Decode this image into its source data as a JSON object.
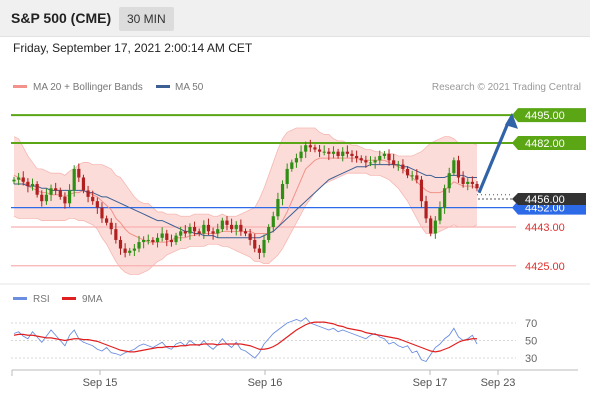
{
  "header": {
    "title": "S&P 500 (CME)",
    "interval": "30 MIN"
  },
  "datetime": "Friday, September 17, 2021 2:00:14 AM CET",
  "legend": {
    "ma20": "MA 20 + Bollinger Bands",
    "ma50": "MA 50",
    "ma20_color": "#f3928a",
    "ma50_color": "#3c5f94",
    "credit": "Research © 2021 Trading Central"
  },
  "rsi_legend": {
    "rsi": "RSI",
    "ma": "9MA",
    "rsi_color": "#6b8ee0",
    "ma_color": "#e02020"
  },
  "colors": {
    "resistance": "#5aa614",
    "support": "#f8b1b1",
    "pivot": "#2d6ae8",
    "bullish": "#2f8e14",
    "bearish": "#b02020",
    "arrow": "#3163a8",
    "bollinger_fill": "#fbd3d0",
    "current_price_bg": "#333333"
  },
  "chart_data": [
    {
      "type": "candlestick",
      "title": "S&P 500 (CME) 30 MIN",
      "x_tick_labels": [
        "Sep 15",
        "Sep 16",
        "Sep 17",
        "Sep 23"
      ],
      "ylim": [
        4417,
        4502
      ],
      "current_price": 4456.0,
      "levels": [
        {
          "label": "4495.00",
          "value": 4495.0,
          "kind": "resistance"
        },
        {
          "label": "4482.00",
          "value": 4482.0,
          "kind": "resistance"
        },
        {
          "label": "4452.00",
          "value": 4452.0,
          "kind": "pivot"
        },
        {
          "label": "4443.00",
          "value": 4443.0,
          "kind": "support"
        },
        {
          "label": "4425.00",
          "value": 4425.0,
          "kind": "support"
        }
      ],
      "current_price_label": "4456.00",
      "projection": {
        "from": 4458,
        "to": 4496
      },
      "close": [
        4465,
        4466,
        4464,
        4462,
        4463,
        4458,
        4455,
        4458,
        4461,
        4460,
        4457,
        4454,
        4460,
        4470,
        4466,
        4460,
        4457,
        4455,
        4452,
        4447,
        4445,
        4442,
        4437,
        4433,
        4431,
        4432,
        4433,
        4436,
        4437,
        4437,
        4436,
        4438,
        4440,
        4437,
        4436,
        4439,
        4441,
        4440,
        4443,
        4441,
        4440,
        4444,
        4441,
        4440,
        4442,
        4446,
        4444,
        4442,
        4444,
        4441,
        4440,
        4437,
        4433,
        4431,
        4437,
        4443,
        4448,
        4456,
        4463,
        4470,
        4473,
        4475,
        4478,
        4481,
        4480,
        4479,
        4478,
        4478,
        4477,
        4478,
        4476,
        4478,
        4477,
        4476,
        4475,
        4474,
        4473,
        4473,
        4474,
        4476,
        4477,
        4474,
        4472,
        4472,
        4470,
        4467,
        4467,
        4465,
        4455,
        4447,
        4440,
        4446,
        4452,
        4461,
        4468,
        4474,
        4466,
        4463,
        4464,
        4463,
        4461
      ],
      "bollinger_upper": [
        4485,
        4484,
        4480,
        4476,
        4473,
        4470,
        4470,
        4469,
        4468,
        4468,
        4468,
        4467,
        4469,
        4470,
        4472,
        4473,
        4473,
        4472,
        4472,
        4472,
        4471,
        4470,
        4467,
        4466,
        4463,
        4460,
        4457,
        4455,
        4454,
        4454,
        4452,
        4450,
        4450,
        4449,
        4449,
        4449,
        4448,
        4448,
        4448,
        4449,
        4449,
        4449,
        4449,
        4448,
        4448,
        4449,
        4448,
        4448,
        4448,
        4449,
        4450,
        4451,
        4452,
        4456,
        4461,
        4467,
        4473,
        4479,
        4484,
        4487,
        4488,
        4489,
        4489,
        4489,
        4489,
        4489,
        4487,
        4486,
        4486,
        4484,
        4483,
        4483,
        4482,
        4481,
        4481,
        4480,
        4479,
        4479,
        4478,
        4478,
        4477,
        4477,
        4477,
        4476,
        4476,
        4476,
        4476,
        4477,
        4478,
        4480,
        4482,
        4483,
        4484,
        4485,
        4485,
        4484,
        4482,
        4482,
        4482,
        4482,
        4481
      ],
      "bollinger_lower": [
        4448,
        4447,
        4447,
        4447,
        4447,
        4447,
        4446,
        4446,
        4446,
        4446,
        4446,
        4446,
        4447,
        4447,
        4446,
        4446,
        4445,
        4444,
        4442,
        4438,
        4435,
        4431,
        4427,
        4424,
        4422,
        4421,
        4421,
        4421,
        4422,
        4423,
        4425,
        4427,
        4428,
        4430,
        4431,
        4432,
        4433,
        4433,
        4434,
        4434,
        4434,
        4434,
        4435,
        4435,
        4435,
        4434,
        4434,
        4433,
        4432,
        4431,
        4430,
        4429,
        4427,
        4427,
        4426,
        4426,
        4428,
        4430,
        4433,
        4437,
        4441,
        4445,
        4449,
        4453,
        4456,
        4459,
        4461,
        4463,
        4464,
        4465,
        4466,
        4467,
        4468,
        4468,
        4468,
        4468,
        4468,
        4467,
        4467,
        4467,
        4466,
        4465,
        4463,
        4461,
        4458,
        4455,
        4451,
        4447,
        4443,
        4440,
        4440,
        4440,
        4441,
        4442,
        4443,
        4444,
        4443,
        4443,
        4443,
        4443,
        4444
      ],
      "ma20": [
        4467,
        4466,
        4464,
        4462,
        4461,
        4460,
        4459,
        4459,
        4458,
        4458,
        4458,
        4457,
        4458,
        4459,
        4459,
        4460,
        4459,
        4458,
        4457,
        4455,
        4453,
        4451,
        4447,
        4445,
        4442,
        4440,
        4439,
        4438,
        4437,
        4436,
        4436,
        4436,
        4436,
        4436,
        4437,
        4438,
        4438,
        4438,
        4439,
        4439,
        4440,
        4440,
        4440,
        4440,
        4440,
        4441,
        4441,
        4441,
        4441,
        4441,
        4441,
        4441,
        4440,
        4440,
        4440,
        4440,
        4441,
        4443,
        4446,
        4450,
        4455,
        4460,
        4465,
        4470,
        4472,
        4474,
        4475,
        4475,
        4475,
        4475,
        4475,
        4475,
        4475,
        4475,
        4475,
        4474,
        4474,
        4474,
        4474,
        4474,
        4474,
        4473,
        4472,
        4471,
        4470,
        4468,
        4466,
        4464,
        4462,
        4460,
        4459,
        4459,
        4459,
        4460,
        4462,
        4464,
        4463,
        4462,
        4462,
        4462,
        4461
      ],
      "ma50": [
        4463,
        4463,
        4463,
        4462,
        4462,
        4462,
        4461,
        4461,
        4460,
        4460,
        4460,
        4460,
        4460,
        4460,
        4460,
        4460,
        4459,
        4459,
        4458,
        4457,
        4457,
        4456,
        4455,
        4454,
        4453,
        4452,
        4451,
        4450,
        4449,
        4448,
        4447,
        4446,
        4446,
        4445,
        4444,
        4443,
        4442,
        4441,
        4441,
        4440,
        4440,
        4439,
        4439,
        4439,
        4438,
        4438,
        4438,
        4438,
        4438,
        4438,
        4438,
        4438,
        4438,
        4438,
        4439,
        4440,
        4441,
        4443,
        4445,
        4447,
        4449,
        4451,
        4453,
        4455,
        4457,
        4459,
        4461,
        4463,
        4465,
        4466,
        4467,
        4468,
        4469,
        4470,
        4471,
        4471,
        4471,
        4472,
        4472,
        4472,
        4472,
        4472,
        4472,
        4472,
        4471,
        4471,
        4470,
        4469,
        4468,
        4467,
        4467,
        4466,
        4466,
        4466,
        4467,
        4467,
        4467,
        4467,
        4466,
        4466,
        4466
      ]
    },
    {
      "type": "line",
      "title": "RSI",
      "ylim": [
        22,
        78
      ],
      "y_ticks": [
        30,
        50,
        70
      ],
      "x_tick_labels": [
        "Sep 15",
        "Sep 16",
        "Sep 17",
        "Sep 23"
      ],
      "series": [
        {
          "name": "RSI",
          "values": [
            58,
            60,
            55,
            52,
            60,
            54,
            48,
            55,
            62,
            56,
            50,
            44,
            56,
            62,
            52,
            48,
            46,
            44,
            40,
            38,
            42,
            36,
            35,
            33,
            36,
            38,
            40,
            44,
            46,
            44,
            42,
            45,
            48,
            42,
            40,
            46,
            48,
            44,
            50,
            46,
            44,
            50,
            44,
            40,
            45,
            52,
            46,
            42,
            48,
            40,
            38,
            34,
            30,
            36,
            46,
            52,
            58,
            62,
            66,
            70,
            72,
            74,
            72,
            76,
            70,
            68,
            66,
            64,
            62,
            64,
            60,
            62,
            60,
            58,
            56,
            54,
            52,
            56,
            58,
            54,
            52,
            46,
            48,
            44,
            42,
            44,
            36,
            38,
            28,
            26,
            34,
            42,
            46,
            52,
            56,
            64,
            54,
            50,
            52,
            56,
            46
          ]
        },
        {
          "name": "9MA",
          "values": [
            56,
            57,
            57,
            56,
            56,
            55,
            54,
            53,
            53,
            52,
            51,
            50,
            51,
            52,
            52,
            51,
            51,
            50,
            49,
            47,
            45,
            43,
            41,
            39,
            38,
            37,
            37,
            38,
            39,
            40,
            41,
            42,
            42,
            43,
            43,
            43,
            44,
            44,
            45,
            45,
            45,
            46,
            46,
            46,
            45,
            46,
            46,
            46,
            46,
            46,
            45,
            44,
            42,
            40,
            40,
            41,
            43,
            46,
            50,
            54,
            58,
            62,
            65,
            68,
            70,
            71,
            71,
            71,
            70,
            69,
            67,
            66,
            64,
            63,
            62,
            61,
            59,
            58,
            57,
            56,
            55,
            54,
            53,
            52,
            50,
            48,
            46,
            44,
            42,
            40,
            38,
            37,
            38,
            40,
            42,
            45,
            48,
            50,
            51,
            52,
            52
          ]
        }
      ]
    }
  ]
}
